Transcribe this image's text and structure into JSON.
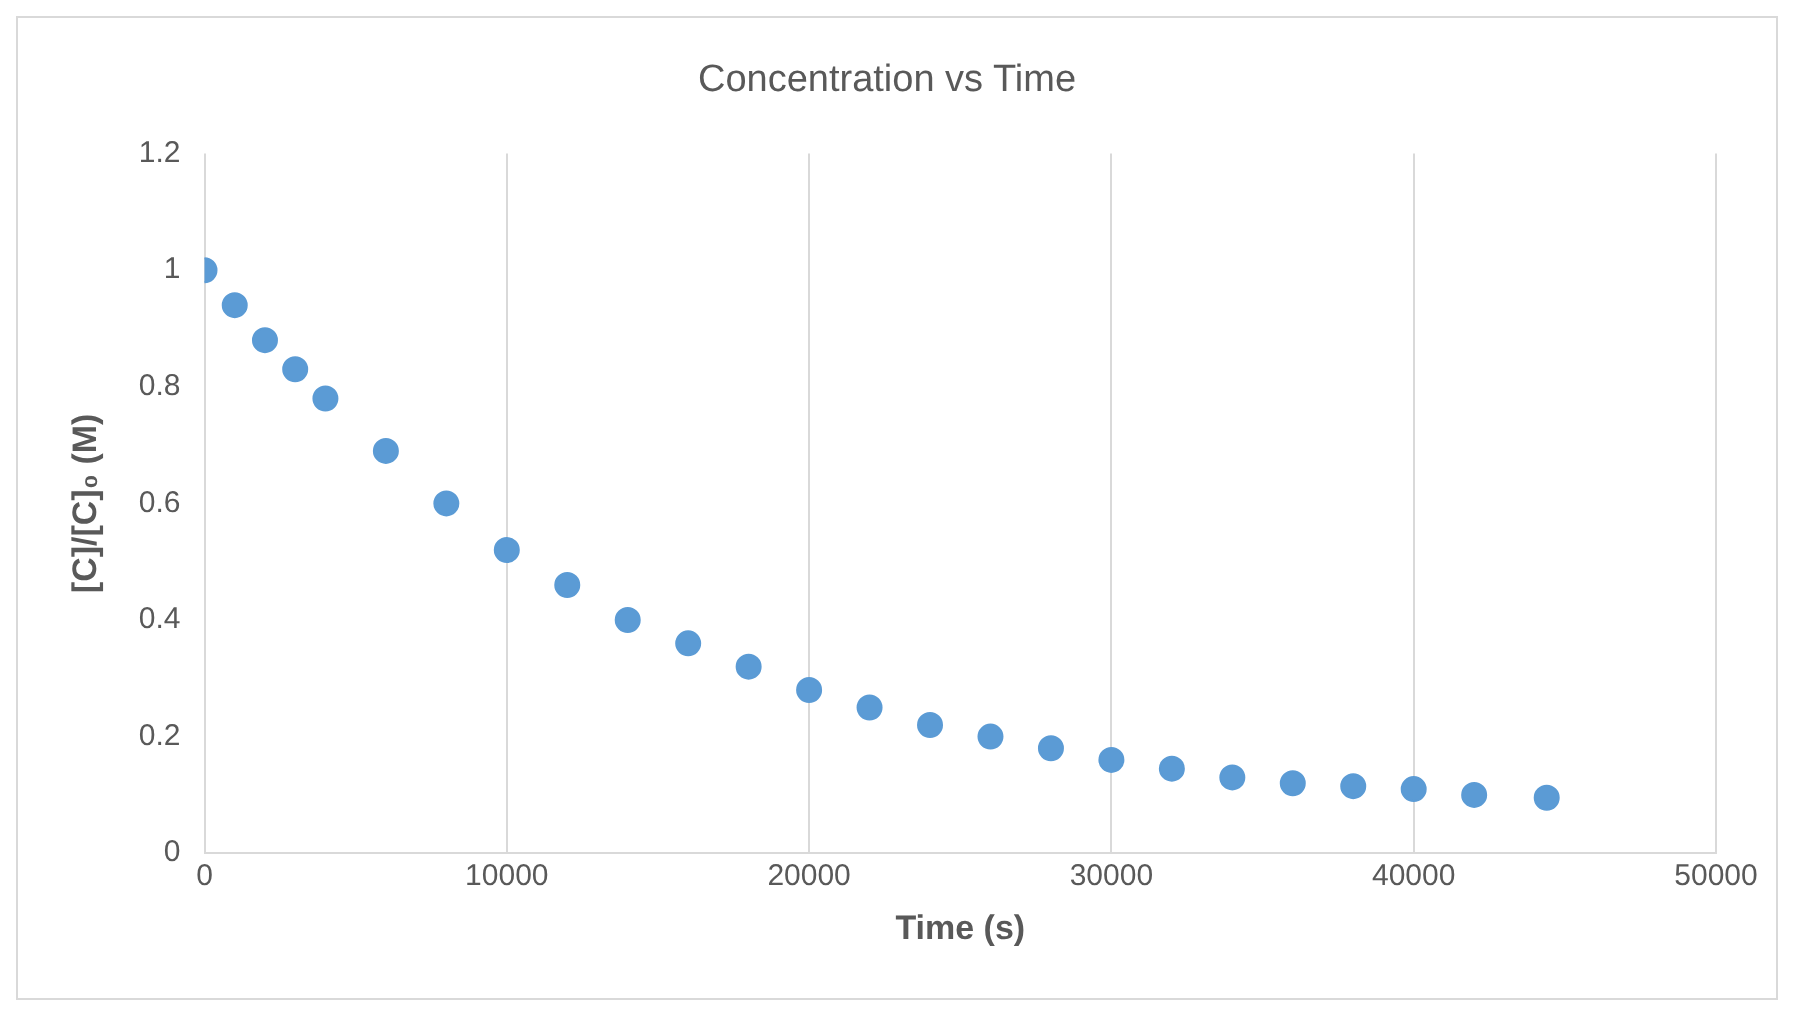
{
  "chart_data": {
    "type": "scatter",
    "title": "Concentration vs Time",
    "xlabel": "Time (s)",
    "ylabel": "[C]/[C]₀ (M)",
    "x": [
      0,
      1000,
      2000,
      3000,
      4000,
      6000,
      8000,
      10000,
      12000,
      14000,
      16000,
      18000,
      20000,
      22000,
      24000,
      26000,
      28000,
      30000,
      32000,
      34000,
      36000,
      38000,
      40000,
      42000,
      44400
    ],
    "series": [
      {
        "color": "#5b9bd5",
        "values": [
          1.0,
          0.94,
          0.88,
          0.83,
          0.78,
          0.69,
          0.6,
          0.52,
          0.46,
          0.4,
          0.36,
          0.32,
          0.28,
          0.25,
          0.22,
          0.2,
          0.18,
          0.16,
          0.145,
          0.13,
          0.12,
          0.115,
          0.11,
          0.1,
          0.095
        ]
      }
    ],
    "xlim": [
      0,
      50000
    ],
    "xticks": [
      0,
      10000,
      20000,
      30000,
      40000,
      50000
    ],
    "ylim": [
      0,
      1.2
    ],
    "yticks": [
      0,
      0.2,
      0.4,
      0.6,
      0.8,
      1,
      1.2
    ],
    "grid": "x",
    "legend": false,
    "marker": "circle"
  }
}
